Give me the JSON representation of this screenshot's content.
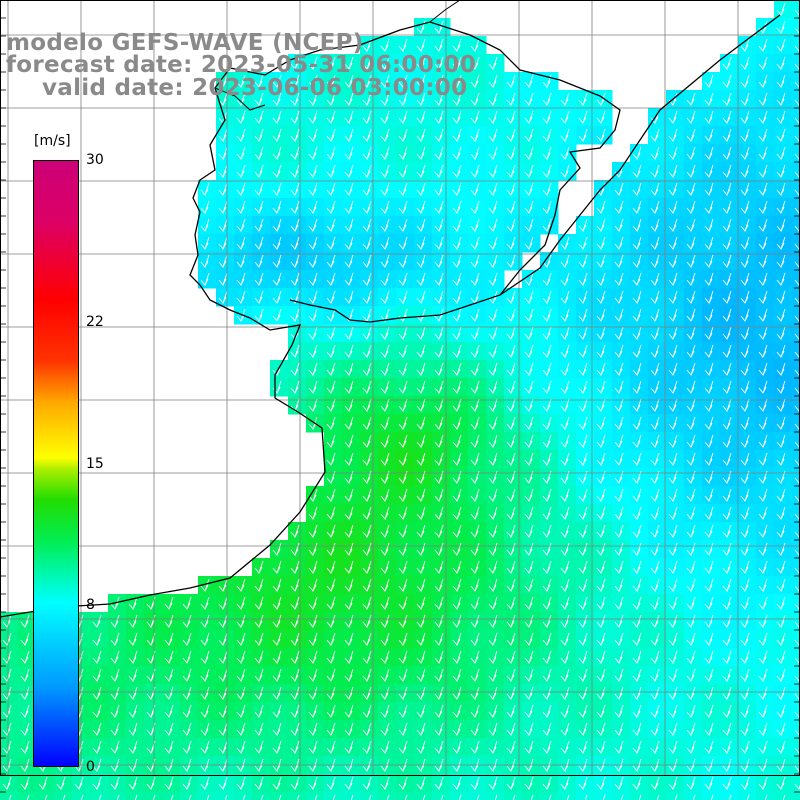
{
  "header": {
    "line1": "modelo GEFS-WAVE (NCEP)",
    "line2": "forecast date: 2023-05-31 06:00:00",
    "line3": "valid date: 2023-06-06 03:00:00"
  },
  "colorbar": {
    "unit": "[m/s]",
    "ticks": [
      {
        "label": "30",
        "value": 30
      },
      {
        "label": "22",
        "value": 22
      },
      {
        "label": "15",
        "value": 15
      },
      {
        "label": "8",
        "value": 8
      },
      {
        "label": "0",
        "value": 0
      }
    ],
    "range": [
      0,
      30
    ]
  },
  "map": {
    "field": "wind speed",
    "wind_direction": "toward south-southwest",
    "colors": {
      "land": "#ffffff",
      "coast": "#000000",
      "grid": "#7f7f7f",
      "arrows": "#ffffff"
    }
  }
}
